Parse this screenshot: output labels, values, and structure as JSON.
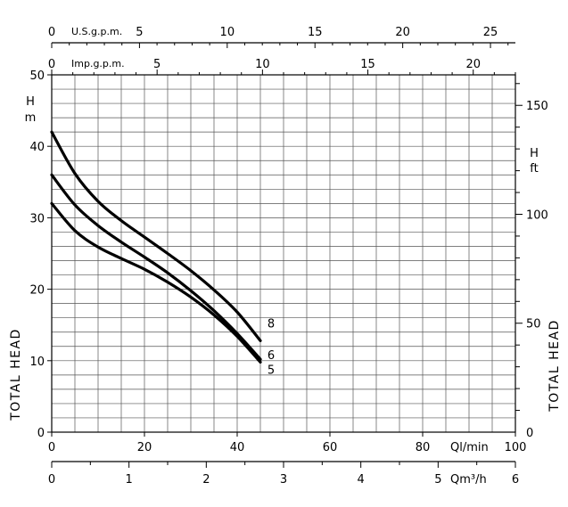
{
  "chart_data": {
    "type": "line",
    "grid": true,
    "axes": {
      "left": {
        "label": "TOTAL HEAD",
        "unit_line1": "H",
        "unit_line2": "m",
        "ylim": [
          0,
          50
        ],
        "ticks": [
          0,
          10,
          20,
          30,
          40,
          50
        ]
      },
      "right": {
        "label": "TOTAL HEAD",
        "unit_line1": "H",
        "unit_line2": "ft",
        "ylim": [
          0,
          164
        ],
        "ticks": [
          0,
          50,
          100,
          150
        ]
      },
      "bottom_ql": {
        "unit": "Ql/min",
        "xlim": [
          0,
          100
        ],
        "ticks": [
          0,
          20,
          40,
          60,
          80,
          100
        ]
      },
      "bottom_qm3": {
        "unit": "Qm³/h",
        "xlim": [
          0,
          6
        ],
        "ticks": [
          0,
          1,
          2,
          3,
          4,
          5,
          6
        ]
      },
      "top_usgpm": {
        "unit": "U.S.g.p.m.",
        "xlim": [
          0,
          26.42
        ],
        "ticks": [
          0,
          5,
          10,
          15,
          20,
          25
        ]
      },
      "top_impgpm": {
        "unit": "Imp.g.p.m.",
        "xlim": [
          0,
          22
        ],
        "ticks": [
          0,
          5,
          10,
          15,
          20
        ]
      }
    },
    "series": [
      {
        "name": "8",
        "x": [
          0,
          5,
          10,
          15,
          20,
          25,
          30,
          35,
          40,
          45
        ],
        "y": [
          42,
          36.2,
          32.3,
          29.6,
          27.3,
          25.0,
          22.6,
          19.9,
          16.8,
          12.8
        ]
      },
      {
        "name": "6",
        "x": [
          0,
          5,
          10,
          15,
          20,
          25,
          30,
          35,
          40,
          45
        ],
        "y": [
          36,
          31.8,
          28.9,
          26.6,
          24.5,
          22.3,
          19.8,
          17.0,
          13.8,
          10.2
        ]
      },
      {
        "name": "5",
        "x": [
          0,
          5,
          10,
          15,
          20,
          25,
          30,
          35,
          40,
          45
        ],
        "y": [
          32,
          28.2,
          25.9,
          24.3,
          22.8,
          21.0,
          18.9,
          16.4,
          13.4,
          9.8
        ]
      }
    ]
  }
}
